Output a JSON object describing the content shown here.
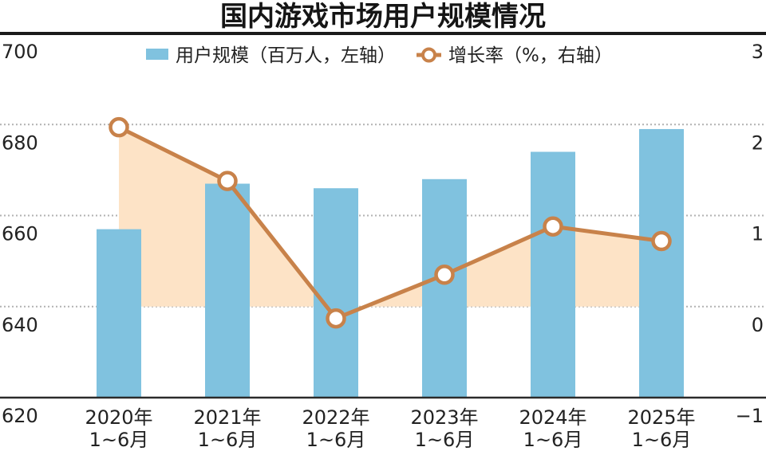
{
  "chart_data": {
    "type": "bar",
    "title": "国内游戏市场用户规模情况",
    "categories": [
      {
        "year": "2020年",
        "period": "1~6月"
      },
      {
        "year": "2021年",
        "period": "1~6月"
      },
      {
        "year": "2022年",
        "period": "1~6月"
      },
      {
        "year": "2023年",
        "period": "1~6月"
      },
      {
        "year": "2024年",
        "period": "1~6月"
      },
      {
        "year": "2025年",
        "period": "1~6月"
      }
    ],
    "series": [
      {
        "name": "用户规模（百万人，左轴）",
        "type": "bar",
        "axis": "left",
        "values": [
          657,
          667,
          666,
          668,
          674,
          679
        ]
      },
      {
        "name": "增长率（%，右轴）",
        "type": "line",
        "axis": "right",
        "fill_to_zero": true,
        "values": [
          1.97,
          1.38,
          -0.13,
          0.35,
          0.88,
          0.72
        ]
      }
    ],
    "y_left": {
      "ylim": [
        620,
        700
      ],
      "ticks": [
        700,
        680,
        660,
        640,
        620
      ],
      "tick_labels": [
        "700",
        "680",
        "660",
        "640",
        "620"
      ]
    },
    "y_right": {
      "ylim": [
        -1,
        3
      ],
      "ticks": [
        3,
        2,
        1,
        0,
        -1
      ],
      "tick_labels": [
        "3",
        "2",
        "1",
        "0",
        "−1"
      ]
    },
    "grid": true,
    "legend_position": "top-center"
  },
  "colors": {
    "bar": "#80c2df",
    "line": "#c8824a",
    "area": "#fde3c6",
    "grid": "#b2b2b2",
    "rule": "#1b1b1b",
    "axis": "#2b2b2b",
    "marker_fill": "#ffffff"
  }
}
